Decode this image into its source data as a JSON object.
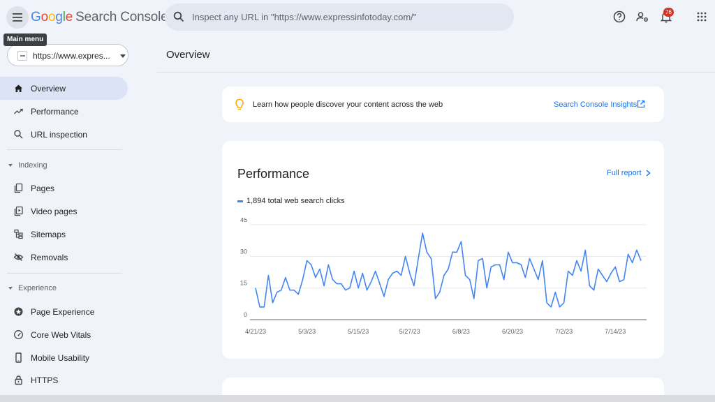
{
  "header": {
    "logo": {
      "g1": "G",
      "g2": "o",
      "g3": "o",
      "g4": "g",
      "g5": "l",
      "g6": "e",
      "product": "Search Console"
    },
    "search_placeholder": "Inspect any URL in \"https://www.expressinfotoday.com/\"",
    "notification_count": "76",
    "tooltip": "Main menu"
  },
  "property": {
    "label": "https://www.expres..."
  },
  "sidebar": {
    "items": [
      {
        "label": "Overview",
        "icon": "home-icon",
        "active": true
      },
      {
        "label": "Performance",
        "icon": "trending-up-icon"
      },
      {
        "label": "URL inspection",
        "icon": "search-icon"
      }
    ],
    "indexing": {
      "label": "Indexing",
      "items": [
        {
          "label": "Pages",
          "icon": "pages-icon"
        },
        {
          "label": "Video pages",
          "icon": "video-pages-icon"
        },
        {
          "label": "Sitemaps",
          "icon": "sitemap-icon"
        },
        {
          "label": "Removals",
          "icon": "removals-icon"
        }
      ]
    },
    "experience": {
      "label": "Experience",
      "items": [
        {
          "label": "Page Experience",
          "icon": "page-experience-icon"
        },
        {
          "label": "Core Web Vitals",
          "icon": "gauge-icon"
        },
        {
          "label": "Mobile Usability",
          "icon": "mobile-icon"
        },
        {
          "label": "HTTPS",
          "icon": "lock-icon"
        }
      ]
    }
  },
  "main": {
    "title": "Overview",
    "insight": {
      "text": "Learn how people discover your content across the web",
      "link": "Search Console Insights"
    },
    "performance": {
      "title": "Performance",
      "link": "Full report",
      "legend": "1,894 total web search clicks"
    }
  },
  "colors": {
    "accent": "#1a73e8",
    "series": "#4285f4",
    "badge": "#d93025"
  },
  "chart_data": {
    "type": "line",
    "title": "",
    "xlabel": "",
    "ylabel": "",
    "ylim": [
      0,
      45
    ],
    "yticks": [
      0,
      15,
      30,
      45
    ],
    "xtick_labels": [
      "4/21/23",
      "5/3/23",
      "5/15/23",
      "5/27/23",
      "6/8/23",
      "6/20/23",
      "7/2/23",
      "7/14/23"
    ],
    "xtick_index": [
      0,
      12,
      24,
      36,
      48,
      60,
      72,
      84
    ],
    "grid": true,
    "series": [
      {
        "name": "",
        "values": [
          15,
          6,
          6,
          21,
          8,
          13,
          14,
          20,
          14,
          14,
          12,
          19,
          28,
          26,
          20,
          24,
          16,
          26,
          19,
          17,
          17,
          14,
          15,
          23,
          15,
          22,
          14,
          18,
          23,
          17,
          11,
          19,
          22,
          23,
          21,
          30,
          22,
          16,
          29,
          41,
          32,
          29,
          10,
          13,
          21,
          24,
          32,
          32,
          37,
          21,
          19,
          10,
          28,
          29,
          15,
          25,
          26,
          26,
          19,
          32,
          27,
          27,
          26,
          20,
          29,
          24,
          19,
          28,
          8,
          6,
          13,
          6,
          8,
          23,
          21,
          28,
          23,
          33,
          16,
          14,
          24,
          21,
          18,
          22,
          25,
          18,
          19,
          31,
          27,
          33,
          28
        ]
      }
    ]
  }
}
